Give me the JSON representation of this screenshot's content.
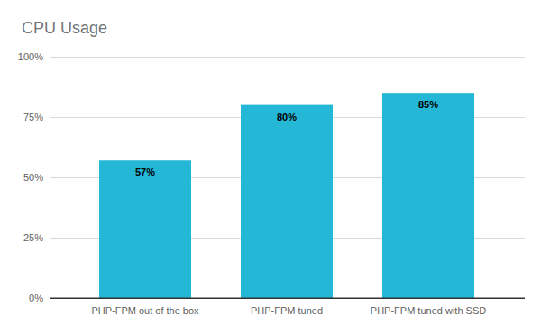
{
  "chart_data": {
    "type": "bar",
    "title": "CPU Usage",
    "categories": [
      "PHP-FPM out of the box",
      "PHP-FPM tuned",
      "PHP-FPM tuned with SSD"
    ],
    "values": [
      57,
      80,
      85
    ],
    "value_labels": [
      "57%",
      "80%",
      "85%"
    ],
    "color": "#24b8d6",
    "ylim": [
      0,
      100
    ],
    "yticks": [
      {
        "value": 0,
        "label": "0%"
      },
      {
        "value": 25,
        "label": "25%"
      },
      {
        "value": 50,
        "label": "50%"
      },
      {
        "value": 75,
        "label": "75%"
      },
      {
        "value": 100,
        "label": "100%"
      }
    ],
    "grid": true,
    "data_labels": true
  }
}
